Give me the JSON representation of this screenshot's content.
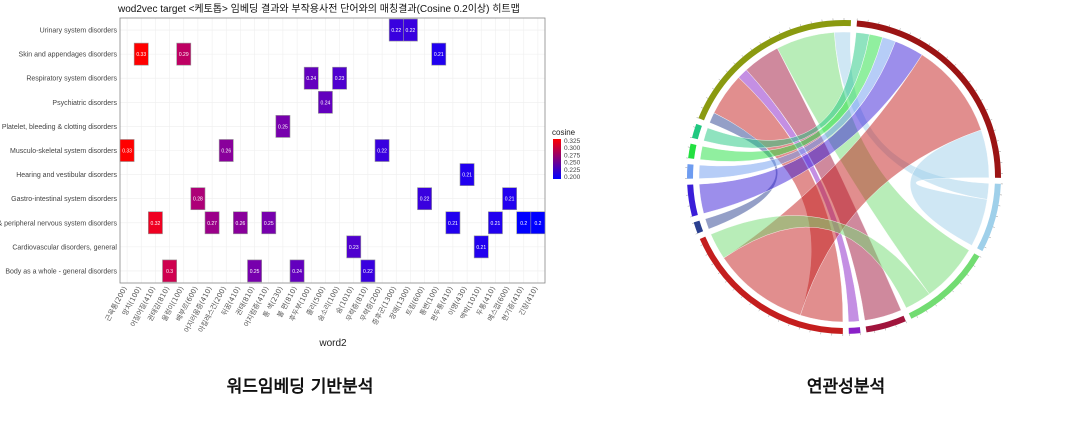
{
  "chart_data": [
    {
      "type": "heatmap",
      "title": "wod2vec target <케토톱> 임베딩 결과와 부작용사전 단어와의 매칭결과(Cosine 0.2이상) 히트맵",
      "xlabel": "word2",
      "ylabel": "",
      "x_categories": [
        "근육통(200)",
        "망치(100)",
        "어질어질(410)",
        "권태감(810)",
        "울렁이(100)",
        "배부르(600)",
        "어지러움증(410)",
        "아킬레스건(200)",
        "뒤꿈(410)",
        "권태(810)",
        "어지럼증(410)",
        "통 색(230)",
        "불 편(810)",
        "후두부(100)",
        "졸리(500)",
        "숨소리(100)",
        "숨(1010)",
        "무력증(810)",
        "무력증(200)",
        "증후군(1300)",
        "장애(1300)",
        "트림(600)",
        "통변(100)",
        "편두통(410)",
        "이명(430)",
        "맥박(1010)",
        "두통(410)",
        "메스껍(600)",
        "현기증(410)",
        "긴장(410)"
      ],
      "y_categories": [
        "Urinary system disorders",
        "Skin and appendages disorders",
        "Respiratory system disorders",
        "Psychiatric disorders",
        "Platelet, bleeding & clotting disorders",
        "Musculo-skeletal system disorders",
        "Hearing and vestibular disorders",
        "Gastro-intestinal system disorders",
        "& peripheral nervous system disorders",
        "Cardiovascular disorders, general",
        "Body as a whole - general disorders"
      ],
      "cells": [
        {
          "x": 19,
          "y": 0,
          "v": 0.22
        },
        {
          "x": 20,
          "y": 0,
          "v": 0.22
        },
        {
          "x": 1,
          "y": 1,
          "v": 0.33
        },
        {
          "x": 4,
          "y": 1,
          "v": 0.29
        },
        {
          "x": 22,
          "y": 1,
          "v": 0.21
        },
        {
          "x": 13,
          "y": 2,
          "v": 0.24
        },
        {
          "x": 15,
          "y": 2,
          "v": 0.23
        },
        {
          "x": 14,
          "y": 3,
          "v": 0.24
        },
        {
          "x": 11,
          "y": 4,
          "v": 0.25
        },
        {
          "x": 0,
          "y": 5,
          "v": 0.33
        },
        {
          "x": 7,
          "y": 5,
          "v": 0.26
        },
        {
          "x": 18,
          "y": 5,
          "v": 0.22
        },
        {
          "x": 24,
          "y": 6,
          "v": 0.21
        },
        {
          "x": 5,
          "y": 7,
          "v": 0.28
        },
        {
          "x": 21,
          "y": 7,
          "v": 0.22
        },
        {
          "x": 27,
          "y": 7,
          "v": 0.21
        },
        {
          "x": 2,
          "y": 8,
          "v": 0.32
        },
        {
          "x": 6,
          "y": 8,
          "v": 0.27
        },
        {
          "x": 8,
          "y": 8,
          "v": 0.26
        },
        {
          "x": 10,
          "y": 8,
          "v": 0.25
        },
        {
          "x": 23,
          "y": 8,
          "v": 0.21
        },
        {
          "x": 26,
          "y": 8,
          "v": 0.21
        },
        {
          "x": 28,
          "y": 8,
          "v": 0.2
        },
        {
          "x": 29,
          "y": 8,
          "v": 0.2
        },
        {
          "x": 16,
          "y": 9,
          "v": 0.23
        },
        {
          "x": 25,
          "y": 9,
          "v": 0.21
        },
        {
          "x": 3,
          "y": 10,
          "v": 0.3
        },
        {
          "x": 9,
          "y": 10,
          "v": 0.25
        },
        {
          "x": 12,
          "y": 10,
          "v": 0.24
        },
        {
          "x": 17,
          "y": 10,
          "v": 0.22
        }
      ],
      "legend": {
        "title": "cosine",
        "ticks": [
          "0.325",
          "0.300",
          "0.275",
          "0.250",
          "0.225",
          "0.200"
        ],
        "range": [
          0.2,
          0.33
        ],
        "low_color": "#0000ff",
        "high_color": "#ff0000",
        "placement": "right"
      }
    },
    {
      "type": "chord",
      "sectors": [
        {
          "id": "olive",
          "color": "#8a9a10"
        },
        {
          "id": "darkred",
          "color": "#9b1414"
        },
        {
          "id": "lightblue",
          "color": "#9fd0ea"
        },
        {
          "id": "green",
          "color": "#72dc72"
        },
        {
          "id": "crimson",
          "color": "#a0143c"
        },
        {
          "id": "purple",
          "color": "#8a20c8"
        },
        {
          "id": "red",
          "color": "#c41e1e"
        },
        {
          "id": "darkblue",
          "color": "#2a3f8f"
        },
        {
          "id": "blue",
          "color": "#3a1ed8"
        },
        {
          "id": "lightblue2",
          "color": "#6e9cf0"
        },
        {
          "id": "green2",
          "color": "#22e040"
        },
        {
          "id": "teal",
          "color": "#20c880"
        }
      ],
      "links": [
        {
          "a": "olive",
          "b": "darkblue",
          "v": 4
        },
        {
          "a": "olive",
          "b": "red",
          "v": 16
        },
        {
          "a": "olive",
          "b": "purple",
          "v": 4
        },
        {
          "a": "olive",
          "b": "crimson",
          "v": 14
        },
        {
          "a": "olive",
          "b": "green",
          "v": 22
        },
        {
          "a": "olive",
          "b": "lightblue",
          "v": 6
        },
        {
          "a": "darkred",
          "b": "teal",
          "v": 5
        },
        {
          "a": "darkred",
          "b": "green2",
          "v": 5
        },
        {
          "a": "darkred",
          "b": "lightblue2",
          "v": 5
        },
        {
          "a": "darkred",
          "b": "blue",
          "v": 11
        },
        {
          "a": "darkred",
          "b": "red",
          "v": 36
        },
        {
          "a": "darkred",
          "b": "lightblue",
          "v": 18
        },
        {
          "a": "red",
          "b": "green",
          "v": 10
        }
      ]
    }
  ],
  "captions": {
    "left": "워드임베딩 기반분석",
    "right": "연관성분석"
  }
}
